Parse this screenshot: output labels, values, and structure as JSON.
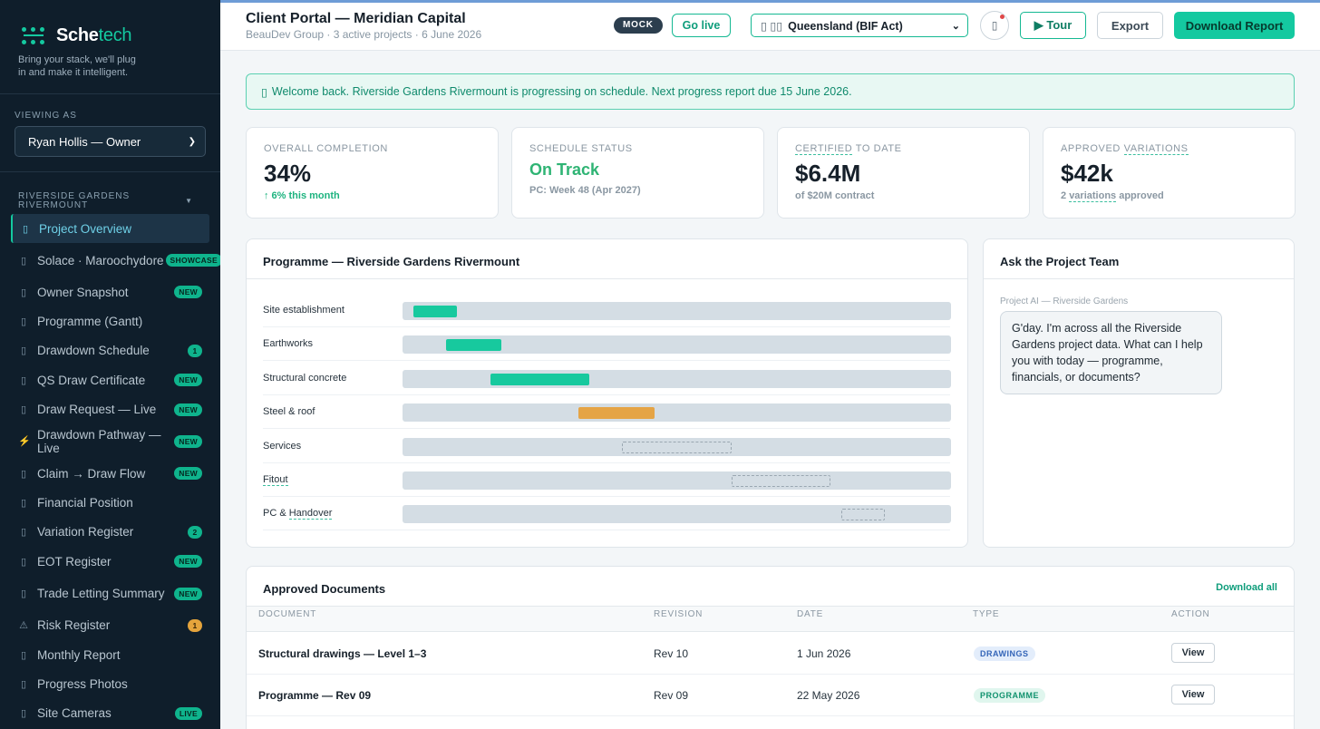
{
  "brand": {
    "name_main": "Sche",
    "name_accent": "tech",
    "tagline": "Bring your stack, we'll plug in and make it intelligent."
  },
  "sidebar": {
    "viewing_label": "VIEWING AS",
    "viewing_value": "Ryan Hollis — Owner",
    "project_label": "RIVERSIDE GARDENS RIVERMOUNT",
    "items": [
      {
        "label": "Project Overview",
        "icon": "document-icon",
        "glyph": "▯",
        "active": true
      },
      {
        "label": "Solace · Maroochydore",
        "icon": "document-icon",
        "glyph": "▯",
        "badge": "SHOWCASE"
      },
      {
        "label": "Owner Snapshot",
        "icon": "document-icon",
        "glyph": "▯",
        "badge": "NEW"
      },
      {
        "label": "Programme (Gantt)",
        "icon": "document-icon",
        "glyph": "▯"
      },
      {
        "label": "Drawdown Schedule",
        "icon": "document-icon",
        "glyph": "▯",
        "badge": "1"
      },
      {
        "label": "QS Draw Certificate",
        "icon": "document-icon",
        "glyph": "▯",
        "badge": "NEW"
      },
      {
        "label": "Draw Request — Live",
        "icon": "document-icon",
        "glyph": "▯",
        "badge": "NEW"
      },
      {
        "label": "Drawdown Pathway — Live",
        "icon": "lightning-icon",
        "glyph": "⚡",
        "badge": "NEW"
      },
      {
        "label": "Claim → Draw Flow",
        "icon": "document-icon",
        "glyph": "▯",
        "badge": "NEW"
      },
      {
        "label": "Financial Position",
        "icon": "document-icon",
        "glyph": "▯"
      },
      {
        "label": "Variation Register",
        "icon": "document-icon",
        "glyph": "▯",
        "badge": "2"
      },
      {
        "label": "EOT Register",
        "icon": "document-icon",
        "glyph": "▯",
        "badge": "NEW"
      },
      {
        "label": "Trade Letting Summary",
        "icon": "document-icon",
        "glyph": "▯",
        "badge": "NEW"
      },
      {
        "label": "Risk Register",
        "icon": "warning-icon",
        "glyph": "⚠",
        "badge": "1",
        "badge_style": "warn"
      },
      {
        "label": "Monthly Report",
        "icon": "document-icon",
        "glyph": "▯"
      },
      {
        "label": "Progress Photos",
        "icon": "document-icon",
        "glyph": "▯"
      },
      {
        "label": "Site Cameras",
        "icon": "document-icon",
        "glyph": "▯",
        "badge": "LIVE"
      }
    ]
  },
  "header": {
    "title": "Client Portal — Meridian Capital",
    "subtitle": "BeauDev Group · 3 active projects · 6 June 2026",
    "mock_label": "MOCK",
    "go_live_label": "Go live",
    "region_label": "Queensland (BIF Act)",
    "region_icon": "▯ ▯▯",
    "bell_icon": "▯",
    "tour_label": "▶ Tour",
    "export_label": "Export",
    "download_label": "Download Report"
  },
  "alert": {
    "icon": "▯",
    "text": "Welcome back. Riverside Gardens Rivermount is progressing on schedule. Next progress report due 15 June 2026."
  },
  "kpis": [
    {
      "label": "OVERALL COMPLETION",
      "value": "34%",
      "note": "↑ 6% this month",
      "style": "normal"
    },
    {
      "label": "SCHEDULE STATUS",
      "value": "On Track",
      "note": "PC: Week 48 (Apr 2027)",
      "style": "status"
    },
    {
      "label_ul": "CERTIFIED",
      "label_rest": " TO DATE",
      "value": "$6.4M",
      "note": "of $20M contract",
      "style": "normal"
    },
    {
      "label_pre": "APPROVED ",
      "label_ul": "VARIATIONS",
      "value": "$42k",
      "note_pre": "2 ",
      "note_ul": "variations",
      "note_post": " approved",
      "style": "normal"
    }
  ],
  "programme": {
    "title": "Programme — Riverside Gardens Rivermount",
    "tasks": [
      {
        "name": "Site establishment",
        "start": 0.02,
        "end": 0.1,
        "kind": "complete"
      },
      {
        "name": "Earthworks",
        "start": 0.08,
        "end": 0.18,
        "kind": "complete"
      },
      {
        "name": "Structural concrete",
        "start": 0.16,
        "end": 0.34,
        "kind": "complete"
      },
      {
        "name": "Steel & roof",
        "start": 0.32,
        "end": 0.46,
        "kind": "in-progress"
      },
      {
        "name": "Services",
        "start": 0.4,
        "end": 0.6,
        "kind": "planned"
      },
      {
        "name": "Fitout",
        "start": 0.6,
        "end": 0.78,
        "kind": "planned",
        "dashed_label": true
      },
      {
        "name_pre": "PC & ",
        "name_ul": "Handover",
        "start": 0.8,
        "end": 0.88,
        "kind": "planned"
      }
    ]
  },
  "chat": {
    "title": "Ask the Project Team",
    "sender": "Project AI — Riverside Gardens",
    "message": "G'day. I'm across all the Riverside Gardens project data. What can I help you with today — programme, financials, or documents?"
  },
  "documents": {
    "title": "Approved Documents",
    "download_all": "Download all",
    "columns": [
      "DOCUMENT",
      "REVISION",
      "DATE",
      "TYPE",
      "ACTION"
    ],
    "rows": [
      {
        "document": "Structural drawings — Level 1–3",
        "revision": "Rev 10",
        "date": "1 Jun 2026",
        "type": "DRAWINGS",
        "type_style": "blue",
        "action": "View"
      },
      {
        "document": "Programme — Rev 09",
        "revision": "Rev 09",
        "date": "22 May 2026",
        "type": "PROGRAMME",
        "type_style": "green",
        "action": "View"
      }
    ]
  }
}
